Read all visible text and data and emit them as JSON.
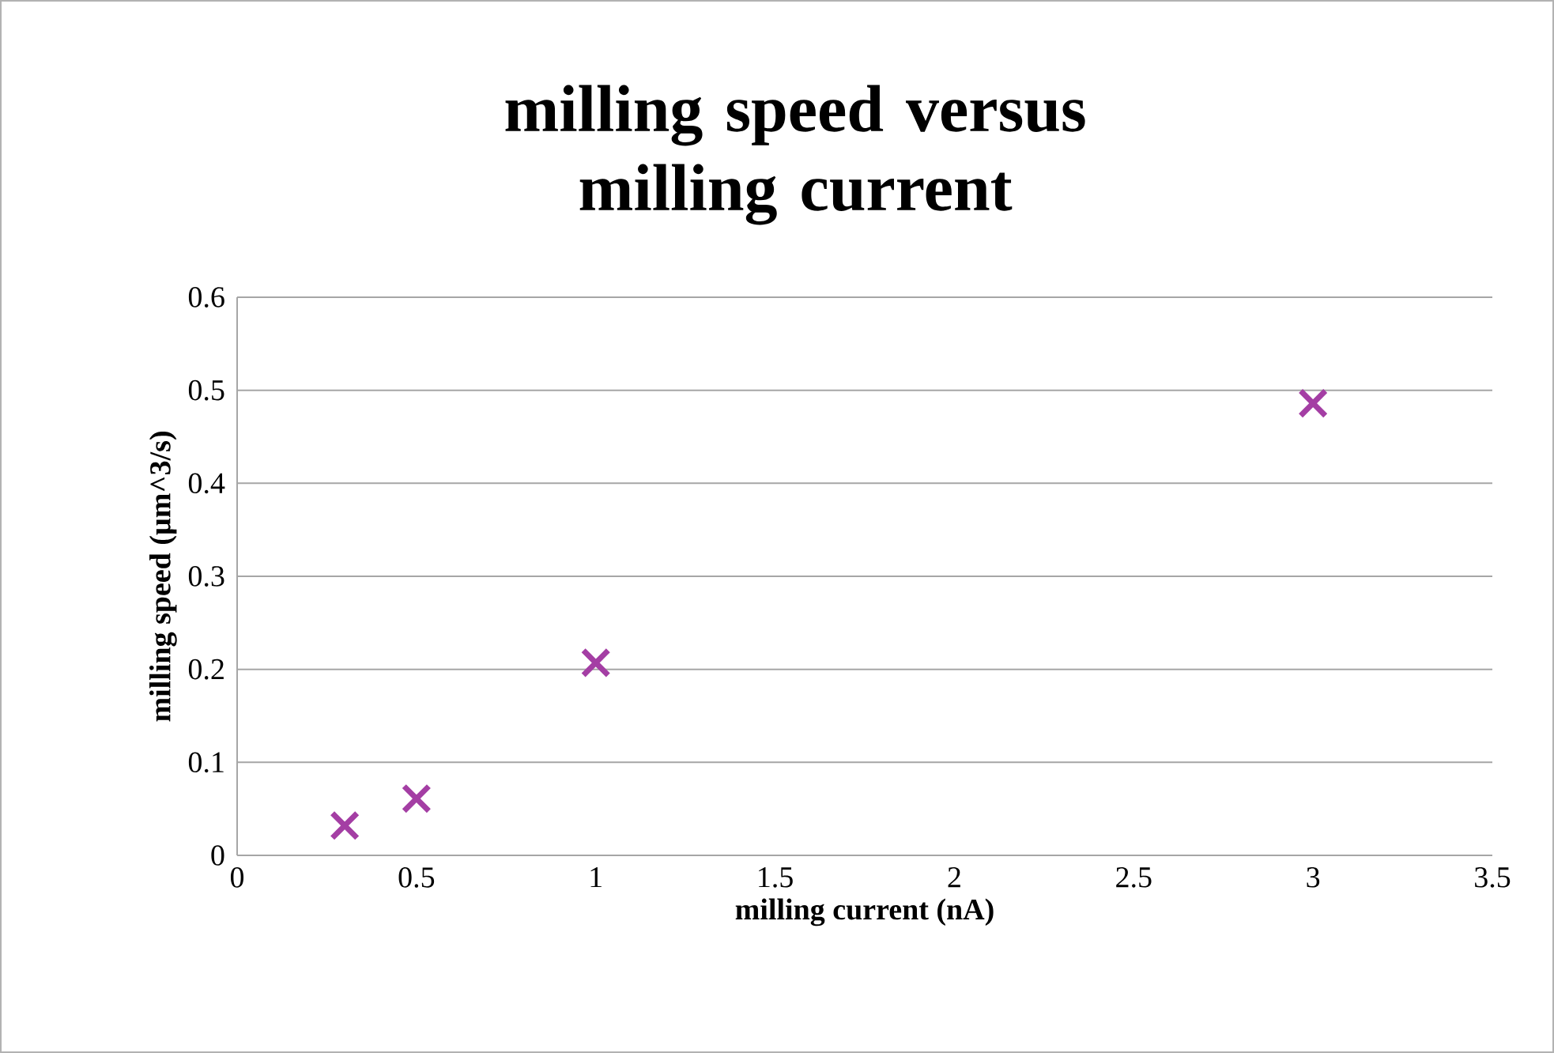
{
  "chart_data": {
    "type": "scatter",
    "title": "milling speed versus milling current",
    "xlabel": "milling current (nA)",
    "ylabel": "milling speed (µm^3/s)",
    "x": [
      0.3,
      0.5,
      1,
      3
    ],
    "values": [
      0.032,
      0.061,
      0.207,
      0.486
    ],
    "color": "#a43ea4",
    "marker": "cross",
    "grid": "y",
    "xlim": [
      0,
      3.5
    ],
    "xticks": [
      0,
      0.5,
      1,
      1.5,
      2,
      2.5,
      3,
      3.5
    ],
    "ylim": [
      0,
      0.6
    ],
    "yticks": [
      0,
      0.1,
      0.2,
      0.3,
      0.4,
      0.5,
      0.6
    ]
  }
}
